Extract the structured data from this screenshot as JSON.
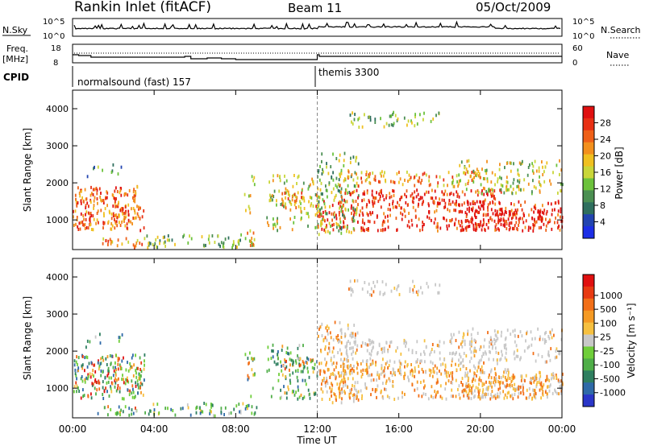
{
  "header": {
    "station": "Rankin Inlet (fitACF)",
    "beam": "Beam 11",
    "date": "05/Oct/2009"
  },
  "noise_panel": {
    "left_label": "N.Sky",
    "left_ticks": [
      "10^5",
      "10^0"
    ],
    "right_label": "N.Search",
    "right_ticks": [
      "10^5",
      "10^0"
    ]
  },
  "freq_panel": {
    "left_label": "Freq.",
    "left_unit": "[MHz]",
    "left_ticks": [
      "18",
      "8"
    ],
    "right_label": "Nave",
    "right_ticks": [
      "60",
      "0"
    ]
  },
  "cpid": {
    "label": "CPID",
    "segments": [
      {
        "name": "normalsound (fast) 157",
        "start_hour": 0
      },
      {
        "name": "themis 3300",
        "start_hour": 12
      }
    ]
  },
  "chart_data": [
    {
      "type": "heatmap",
      "panel": "power",
      "ylabel": "Slant Range [km]",
      "y_ticks": [
        1000,
        2000,
        3000,
        4000
      ],
      "ylim": [
        200,
        4500
      ],
      "colorbar": {
        "label": "Power [dB]",
        "ticks": [
          "4",
          "8",
          "12",
          "16",
          "20",
          "24",
          "28"
        ],
        "colors": [
          "#1c2ee6",
          "#2244b0",
          "#2f6f5e",
          "#4b8f52",
          "#6cc23c",
          "#c9d639",
          "#f0c020",
          "#f3901d",
          "#ef6018",
          "#e83014",
          "#e01010"
        ]
      }
    },
    {
      "type": "heatmap",
      "panel": "velocity",
      "ylabel": "Slant Range [km]",
      "y_ticks": [
        1000,
        2000,
        3000,
        4000
      ],
      "ylim": [
        200,
        4500
      ],
      "colorbar": {
        "label": "Velocity [m s⁻¹]",
        "ticks": [
          "1000",
          "500",
          "100",
          "25",
          "-25",
          "-100",
          "-500",
          "-1000"
        ],
        "colors": [
          "#2a36c8",
          "#2f6aa8",
          "#2f7f60",
          "#4fae48",
          "#6fce3a",
          "#c8c8c8",
          "#f6c040",
          "#f59a24",
          "#f26f18",
          "#e83a12",
          "#e01010"
        ]
      }
    }
  ],
  "x_axis": {
    "ticks": [
      "00:00",
      "04:00",
      "08:00",
      "12:00",
      "16:00",
      "20:00",
      "00:00"
    ],
    "label": "Time UT"
  }
}
